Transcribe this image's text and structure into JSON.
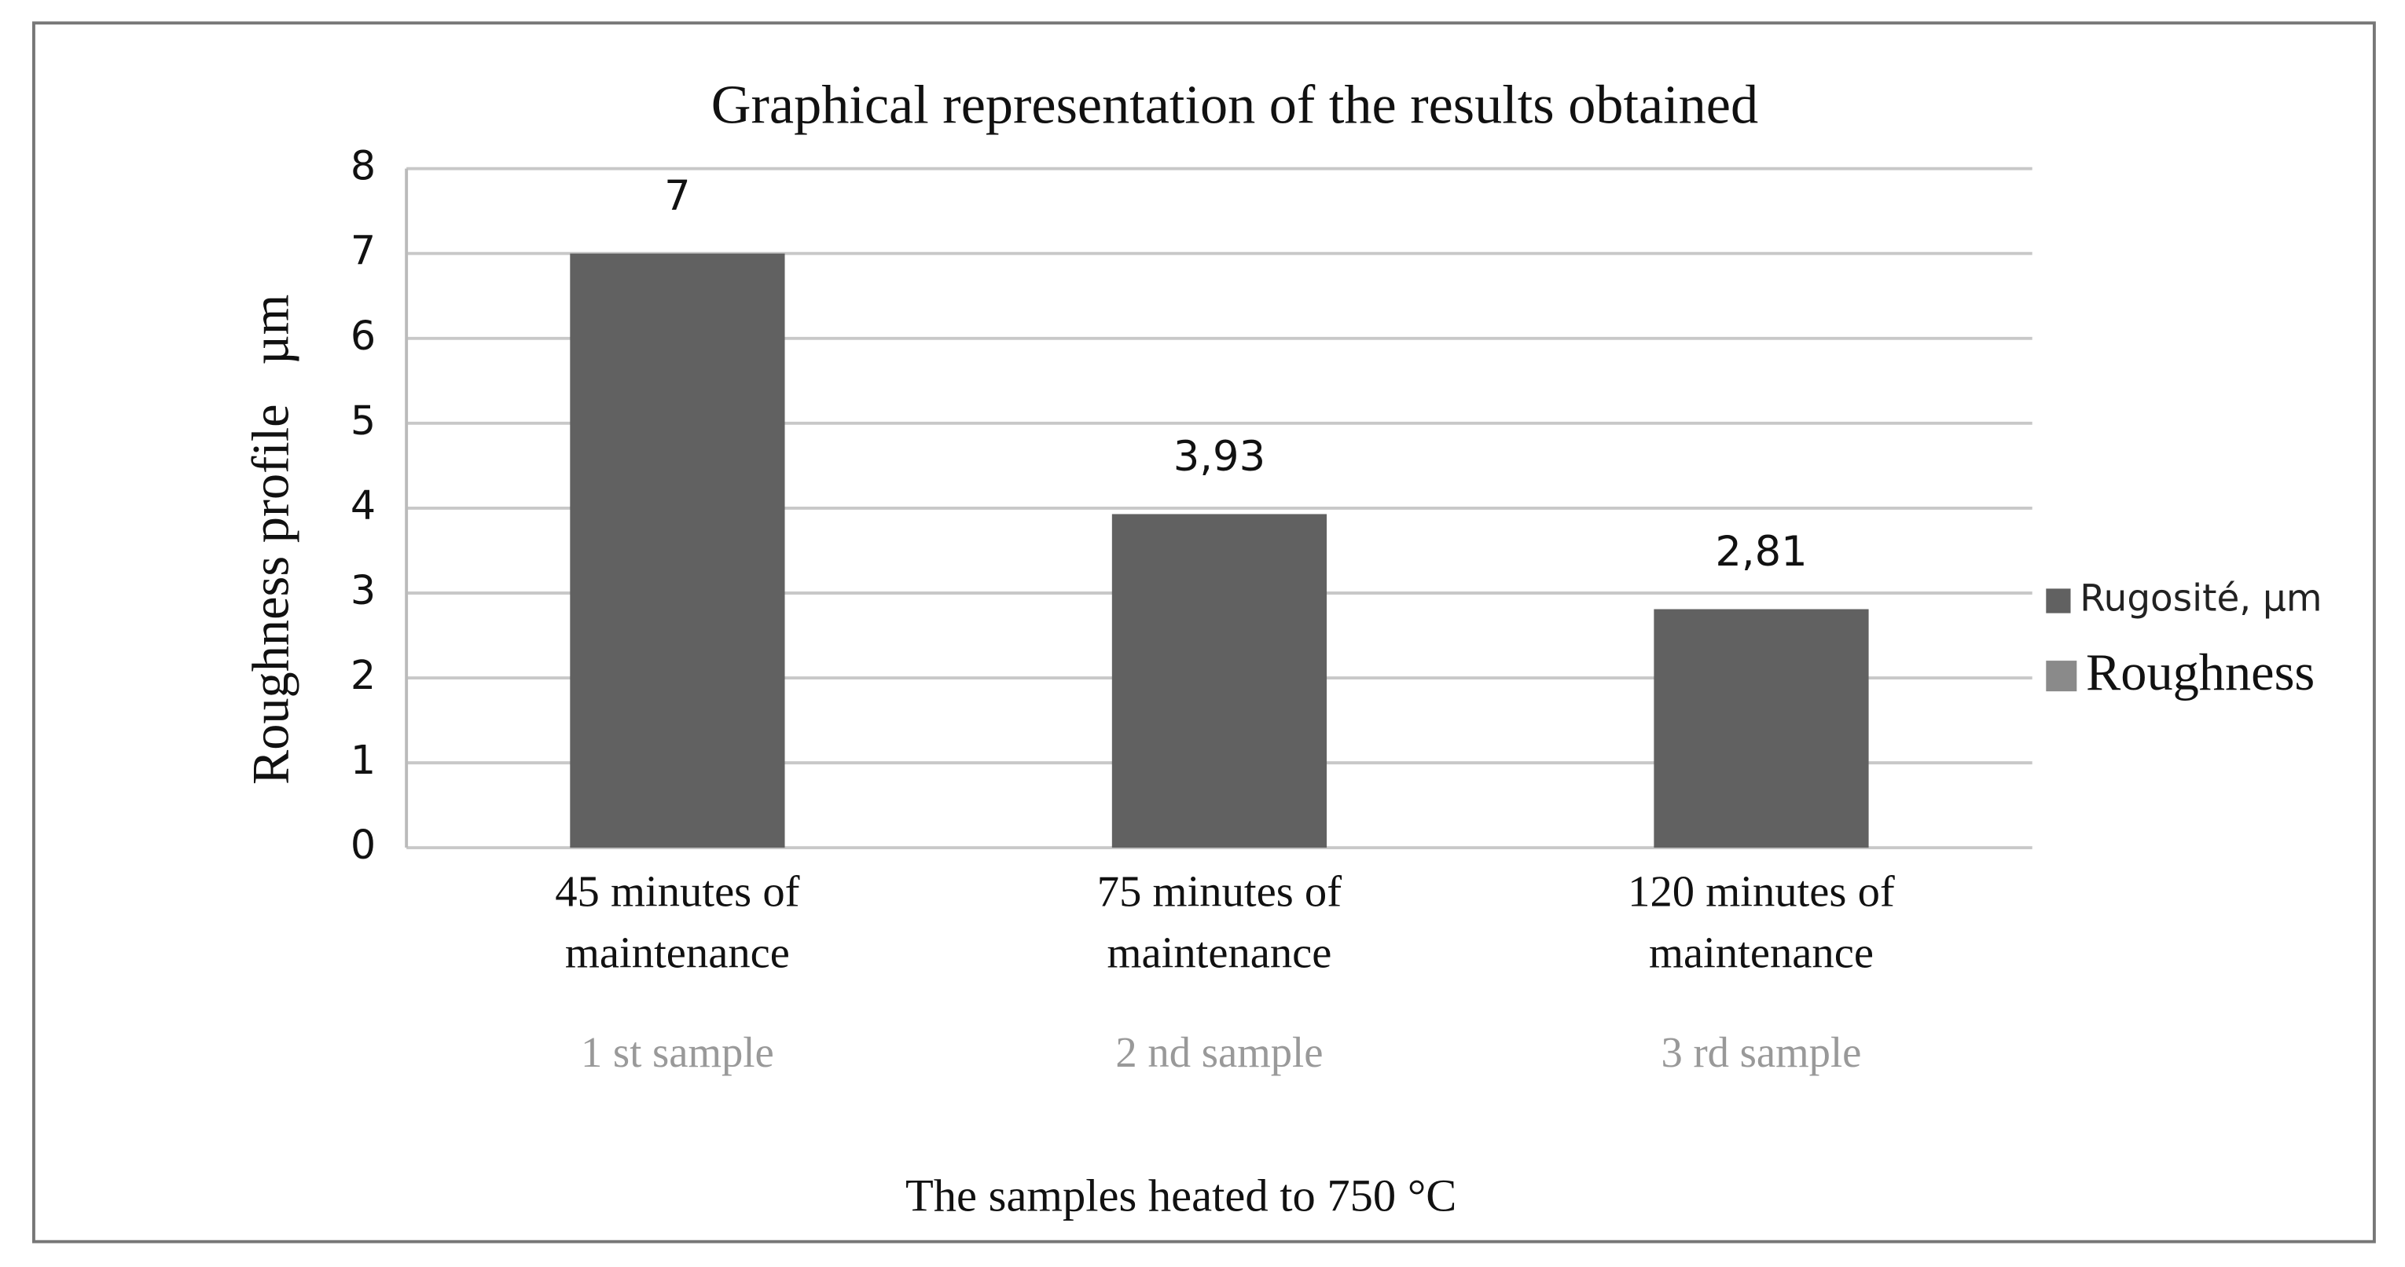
{
  "chart_data": {
    "type": "bar",
    "title": "Graphical representation of the results obtained",
    "y_label": "Roughness profile   µm",
    "x_label": "The samples heated to 750 °C",
    "categories": [
      "45 minutes of maintenance",
      "75 minutes of maintenance",
      "120 minutes of maintenance"
    ],
    "sample_labels": [
      "1 st sample",
      "2 nd sample",
      "3 rd sample"
    ],
    "series": [
      {
        "name": "Rugosité, µm",
        "color": "#616161",
        "values": [
          7,
          3.93,
          2.81
        ],
        "value_labels": [
          "7",
          "3,93",
          "2,81"
        ]
      }
    ],
    "legend_annotation": "Roughness",
    "ylim": [
      0,
      8
    ],
    "yticks": [
      0,
      1,
      2,
      3,
      4,
      5,
      6,
      7,
      8
    ],
    "grid": true,
    "legend": "right"
  }
}
